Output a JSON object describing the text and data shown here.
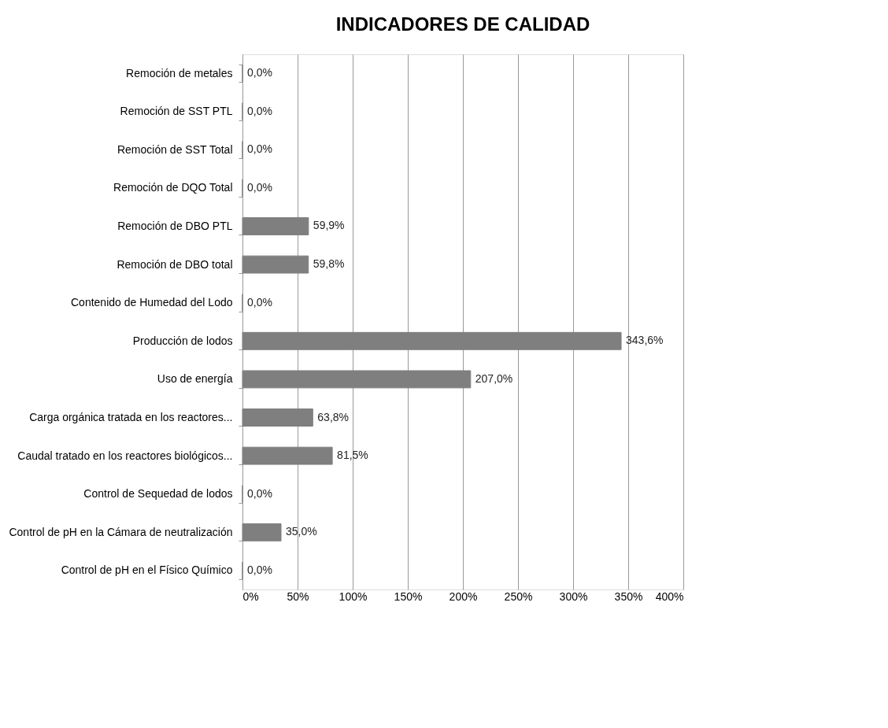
{
  "chart_data": {
    "type": "bar",
    "orientation": "horizontal",
    "title": "INDICADORES DE CALIDAD",
    "categories": [
      "Remoción de metales",
      "Remoción de SST PTL",
      "Remoción de SST Total",
      "Remoción de DQO Total",
      "Remoción de DBO PTL",
      "Remoción de DBO total",
      "Contenido de Humedad del Lodo",
      "Producción de lodos",
      "Uso de energía",
      "Carga orgánica tratada en los reactores...",
      "Caudal tratado en los reactores biológicos...",
      "Control de Sequedad de lodos",
      "Control de pH en la Cámara de neutralización",
      "Control de pH en el Físico Químico"
    ],
    "values": [
      0,
      0,
      0,
      0,
      59.9,
      59.8,
      0,
      343.6,
      207.0,
      63.8,
      81.5,
      0,
      35.0,
      0
    ],
    "value_labels": [
      "0,0%",
      "0,0%",
      "0,0%",
      "0,0%",
      "59,9%",
      "59,8%",
      "0,0%",
      "343,6%",
      "207,0%",
      "63,8%",
      "81,5%",
      "0,0%",
      "35,0%",
      "0,0%"
    ],
    "color": "#7f7f7f",
    "xlim": [
      0,
      400
    ],
    "xticks": [
      {
        "value": 0,
        "label": "0%"
      },
      {
        "value": 50,
        "label": "50%"
      },
      {
        "value": 100,
        "label": "100%"
      },
      {
        "value": 150,
        "label": "150%"
      },
      {
        "value": 200,
        "label": "200%"
      },
      {
        "value": 250,
        "label": "250%"
      },
      {
        "value": 300,
        "label": "300%"
      },
      {
        "value": 350,
        "label": "350%"
      },
      {
        "value": 400,
        "label": "400%"
      }
    ],
    "grid": "x"
  }
}
